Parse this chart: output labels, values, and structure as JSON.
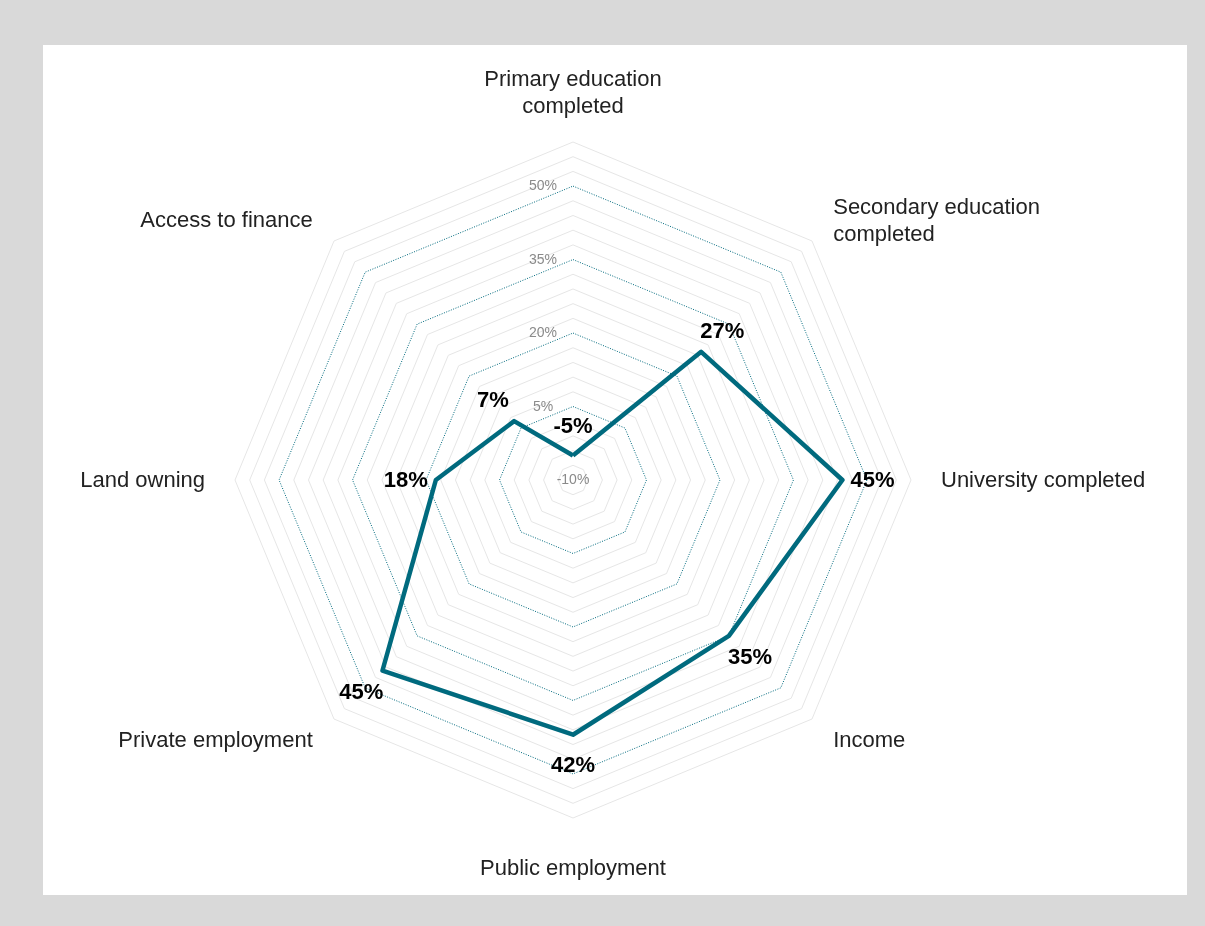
{
  "chart_data": {
    "type": "radar",
    "categories": [
      "Primary education\ncompleted",
      "Secondary education\ncompleted",
      "University completed",
      "Income",
      "Public employment",
      "Private employment",
      "Land owning",
      "Access to finance"
    ],
    "series": [
      {
        "color": "#006a7e",
        "values": [
          -5,
          27,
          45,
          35,
          42,
          45,
          18,
          7
        ],
        "value_labels": [
          "-5%",
          "27%",
          "45%",
          "35%",
          "42%",
          "45%",
          "18%",
          "7%"
        ]
      }
    ],
    "ylim": [
      -10,
      59
    ],
    "yticks": [
      {
        "value": -10,
        "label": "-10%"
      },
      {
        "value": 5,
        "label": "5%"
      },
      {
        "value": 20,
        "label": "20%"
      },
      {
        "value": 35,
        "label": "35%"
      },
      {
        "value": 50,
        "label": "50%"
      }
    ],
    "grid": true
  }
}
